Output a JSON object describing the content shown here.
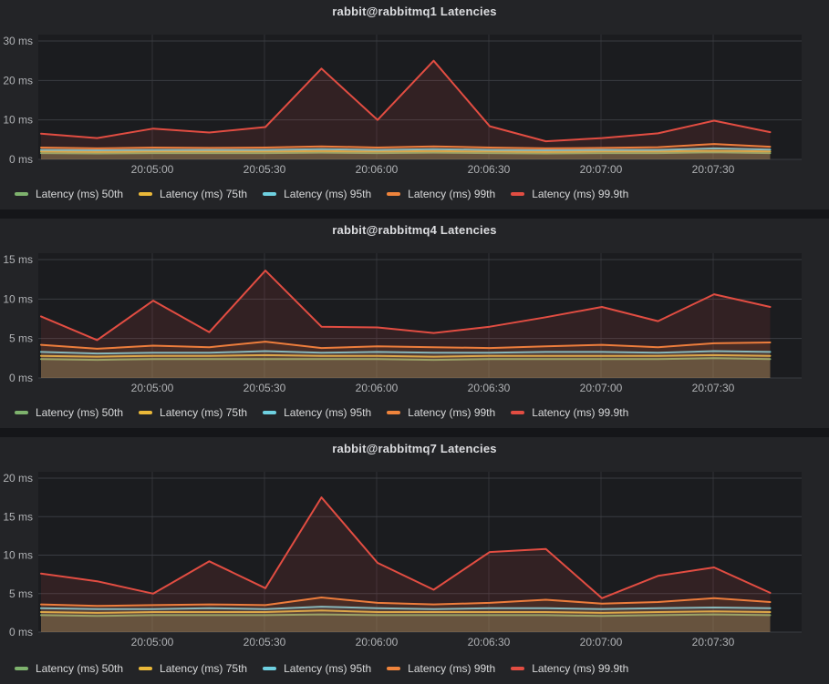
{
  "theme": {
    "page_bg": "#151619",
    "panel_bg": "#232427",
    "plot_bg": "#1b1c1f",
    "grid_color": "#3a3c42",
    "axis_text_color": "#b0b2b5",
    "legend_text_color": "#d8d9da",
    "title_color": "#dcdde0",
    "series_fill_opacity": 0.12
  },
  "chart_data": [
    {
      "type": "area",
      "title": "rabbit@rabbitmq1 Latencies",
      "xlabel": "",
      "ylabel": "",
      "ylim": [
        0,
        30
      ],
      "y_tick_labels": [
        "0 ms",
        "10 ms",
        "20 ms",
        "30 ms"
      ],
      "x": [
        "20:04:30",
        "20:04:45",
        "20:05:00",
        "20:05:15",
        "20:05:30",
        "20:05:45",
        "20:06:00",
        "20:06:15",
        "20:06:30",
        "20:06:45",
        "20:07:00",
        "20:07:15",
        "20:07:30",
        "20:07:45"
      ],
      "x_tick_labels": [
        "20:05:00",
        "20:05:30",
        "20:06:00",
        "20:06:30",
        "20:07:00",
        "20:07:30"
      ],
      "grid": true,
      "legend_position": "bottom",
      "series": [
        {
          "name": "Latency (ms) 50th",
          "color": "#7EB26D",
          "values": [
            1.6,
            1.5,
            1.6,
            1.6,
            1.6,
            1.7,
            1.6,
            1.7,
            1.6,
            1.5,
            1.6,
            1.6,
            1.8,
            1.6
          ]
        },
        {
          "name": "Latency (ms) 75th",
          "color": "#EAB839",
          "values": [
            2.0,
            1.9,
            2.0,
            2.0,
            2.0,
            2.1,
            2.0,
            2.1,
            2.0,
            1.9,
            2.0,
            2.0,
            2.2,
            2.0
          ]
        },
        {
          "name": "Latency (ms) 95th",
          "color": "#6ED0E0",
          "values": [
            2.4,
            2.3,
            2.4,
            2.4,
            2.4,
            2.6,
            2.4,
            2.6,
            2.4,
            2.3,
            2.4,
            2.4,
            2.8,
            2.5
          ]
        },
        {
          "name": "Latency (ms) 99th",
          "color": "#EF843C",
          "values": [
            3.0,
            2.8,
            3.0,
            2.9,
            3.0,
            3.3,
            3.0,
            3.3,
            3.0,
            2.8,
            2.9,
            3.1,
            3.9,
            3.2
          ]
        },
        {
          "name": "Latency (ms) 99.9th",
          "color": "#E24D42",
          "values": [
            6.5,
            5.4,
            7.8,
            6.8,
            8.2,
            23.0,
            10.0,
            25.0,
            8.4,
            4.6,
            5.4,
            6.6,
            9.8,
            6.9
          ]
        }
      ]
    },
    {
      "type": "area",
      "title": "rabbit@rabbitmq4 Latencies",
      "xlabel": "",
      "ylabel": "",
      "ylim": [
        0,
        15
      ],
      "y_tick_labels": [
        "0 ms",
        "5 ms",
        "10 ms",
        "15 ms"
      ],
      "x": [
        "20:04:30",
        "20:04:45",
        "20:05:00",
        "20:05:15",
        "20:05:30",
        "20:05:45",
        "20:06:00",
        "20:06:15",
        "20:06:30",
        "20:06:45",
        "20:07:00",
        "20:07:15",
        "20:07:30",
        "20:07:45"
      ],
      "x_tick_labels": [
        "20:05:00",
        "20:05:30",
        "20:06:00",
        "20:06:30",
        "20:07:00",
        "20:07:30"
      ],
      "grid": true,
      "legend_position": "bottom",
      "series": [
        {
          "name": "Latency (ms) 50th",
          "color": "#7EB26D",
          "values": [
            2.4,
            2.3,
            2.4,
            2.4,
            2.4,
            2.4,
            2.4,
            2.3,
            2.4,
            2.4,
            2.4,
            2.4,
            2.5,
            2.4
          ]
        },
        {
          "name": "Latency (ms) 75th",
          "color": "#EAB839",
          "values": [
            2.8,
            2.7,
            2.8,
            2.8,
            2.9,
            2.8,
            2.8,
            2.7,
            2.8,
            2.8,
            2.8,
            2.8,
            2.9,
            2.8
          ]
        },
        {
          "name": "Latency (ms) 95th",
          "color": "#6ED0E0",
          "values": [
            3.3,
            3.1,
            3.2,
            3.2,
            3.4,
            3.2,
            3.3,
            3.2,
            3.2,
            3.3,
            3.3,
            3.2,
            3.4,
            3.3
          ]
        },
        {
          "name": "Latency (ms) 99th",
          "color": "#EF843C",
          "values": [
            4.2,
            3.7,
            4.1,
            3.9,
            4.6,
            3.8,
            4.0,
            3.9,
            3.8,
            4.0,
            4.2,
            3.9,
            4.4,
            4.5
          ]
        },
        {
          "name": "Latency (ms) 99.9th",
          "color": "#E24D42",
          "values": [
            7.8,
            4.8,
            9.8,
            5.8,
            13.6,
            6.5,
            6.4,
            5.7,
            6.5,
            7.7,
            9.0,
            7.2,
            10.6,
            9.0
          ]
        }
      ]
    },
    {
      "type": "area",
      "title": "rabbit@rabbitmq7 Latencies",
      "xlabel": "",
      "ylabel": "",
      "ylim": [
        0,
        20
      ],
      "y_tick_labels": [
        "0 ms",
        "5 ms",
        "10 ms",
        "15 ms",
        "20 ms"
      ],
      "x": [
        "20:04:30",
        "20:04:45",
        "20:05:00",
        "20:05:15",
        "20:05:30",
        "20:05:45",
        "20:06:00",
        "20:06:15",
        "20:06:30",
        "20:06:45",
        "20:07:00",
        "20:07:15",
        "20:07:30",
        "20:07:45"
      ],
      "x_tick_labels": [
        "20:05:00",
        "20:05:30",
        "20:06:00",
        "20:06:30",
        "20:07:00",
        "20:07:30"
      ],
      "grid": true,
      "legend_position": "bottom",
      "series": [
        {
          "name": "Latency (ms) 50th",
          "color": "#7EB26D",
          "values": [
            2.2,
            2.1,
            2.2,
            2.2,
            2.2,
            2.3,
            2.2,
            2.2,
            2.2,
            2.2,
            2.1,
            2.2,
            2.3,
            2.2
          ]
        },
        {
          "name": "Latency (ms) 75th",
          "color": "#EAB839",
          "values": [
            2.6,
            2.5,
            2.6,
            2.6,
            2.6,
            2.8,
            2.6,
            2.6,
            2.6,
            2.6,
            2.5,
            2.6,
            2.7,
            2.6
          ]
        },
        {
          "name": "Latency (ms) 95th",
          "color": "#6ED0E0",
          "values": [
            3.1,
            3.0,
            3.0,
            3.1,
            3.0,
            3.3,
            3.1,
            3.0,
            3.1,
            3.1,
            3.0,
            3.1,
            3.2,
            3.1
          ]
        },
        {
          "name": "Latency (ms) 99th",
          "color": "#EF843C",
          "values": [
            3.6,
            3.4,
            3.5,
            3.6,
            3.5,
            4.5,
            3.8,
            3.6,
            3.8,
            4.2,
            3.7,
            3.9,
            4.4,
            3.9
          ]
        },
        {
          "name": "Latency (ms) 99.9th",
          "color": "#E24D42",
          "values": [
            7.6,
            6.6,
            5.0,
            9.2,
            5.7,
            17.5,
            9.0,
            5.5,
            10.4,
            10.8,
            4.4,
            7.3,
            8.4,
            5.1
          ]
        }
      ]
    }
  ]
}
